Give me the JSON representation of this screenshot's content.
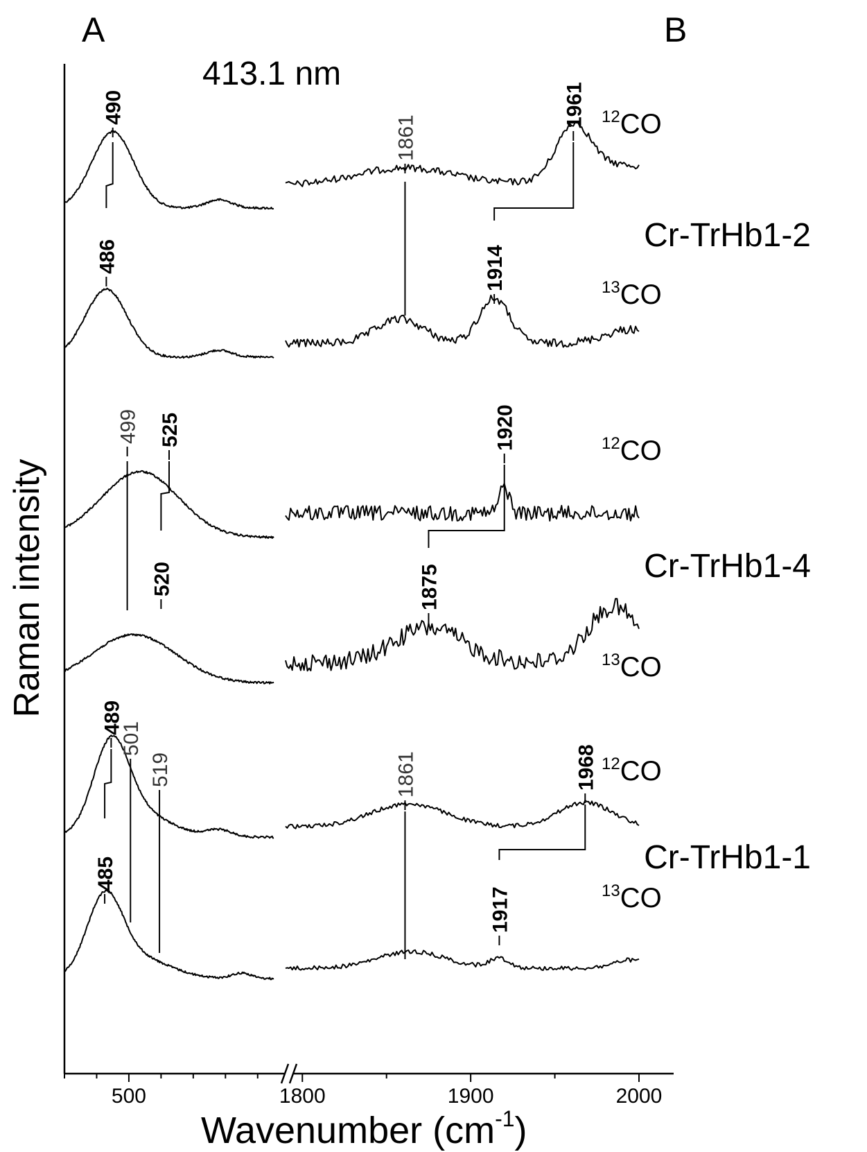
{
  "panels": {
    "a": "A",
    "b": "B"
  },
  "excitation": "413.1 nm",
  "chart_data": {
    "type": "line",
    "ylabel": "Raman intensity",
    "xlabel": "Wavenumber (cm",
    "xlabel_sup": "-1",
    "xlabel_close": ")",
    "xaxis_break": true,
    "segments": [
      {
        "xlim": [
          460,
          590
        ],
        "ticks": [
          "500"
        ]
      },
      {
        "xlim": [
          1790,
          2000
        ],
        "ticks": [
          "1800",
          "1900",
          "2000"
        ]
      }
    ],
    "samples": [
      {
        "name": "Cr-TrHb1-2",
        "spectra": [
          {
            "isotope": "12",
            "species": "CO",
            "peaks_low": [
              {
                "x": 490,
                "label": "490",
                "bold": true
              }
            ],
            "peaks_high": [
              {
                "x": 1861,
                "label": "1861",
                "bold": false
              },
              {
                "x": 1961,
                "label": "1961",
                "bold": true
              }
            ]
          },
          {
            "isotope": "13",
            "species": "CO",
            "peaks_low": [
              {
                "x": 486,
                "label": "486",
                "bold": true
              }
            ],
            "peaks_high": [
              {
                "x": 1914,
                "label": "1914",
                "bold": true
              }
            ]
          }
        ]
      },
      {
        "name": "Cr-TrHb1-4",
        "spectra": [
          {
            "isotope": "12",
            "species": "CO",
            "peaks_low": [
              {
                "x": 499,
                "label": "499",
                "bold": false
              },
              {
                "x": 525,
                "label": "525",
                "bold": true
              }
            ],
            "peaks_high": [
              {
                "x": 1920,
                "label": "1920",
                "bold": true
              }
            ]
          },
          {
            "isotope": "13",
            "species": "CO",
            "peaks_low": [
              {
                "x": 520,
                "label": "520",
                "bold": true
              }
            ],
            "peaks_high": [
              {
                "x": 1875,
                "label": "1875",
                "bold": true
              }
            ]
          }
        ]
      },
      {
        "name": "Cr-TrHb1-1",
        "spectra": [
          {
            "isotope": "12",
            "species": "CO",
            "peaks_low": [
              {
                "x": 489,
                "label": "489",
                "bold": true
              },
              {
                "x": 501,
                "label": "501",
                "bold": false
              },
              {
                "x": 519,
                "label": "519",
                "bold": false
              }
            ],
            "peaks_high": [
              {
                "x": 1861,
                "label": "1861",
                "bold": false
              },
              {
                "x": 1968,
                "label": "1968",
                "bold": true
              }
            ]
          },
          {
            "isotope": "13",
            "species": "CO",
            "peaks_low": [
              {
                "x": 485,
                "label": "485",
                "bold": true
              }
            ],
            "peaks_high": [
              {
                "x": 1917,
                "label": "1917",
                "bold": true
              }
            ]
          }
        ]
      }
    ]
  }
}
